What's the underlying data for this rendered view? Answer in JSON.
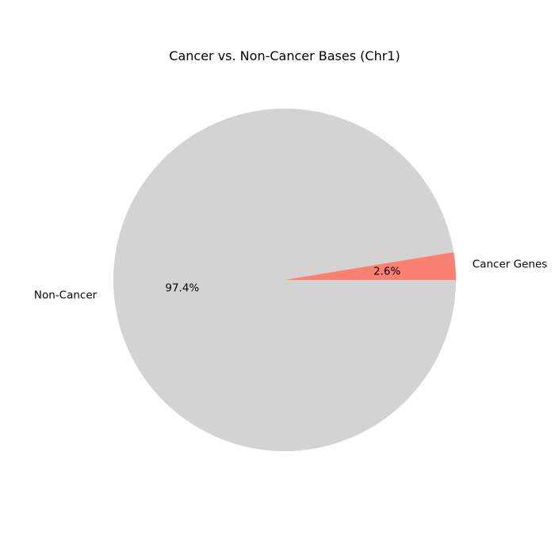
{
  "chart_data": {
    "type": "pie",
    "title": "Cancer vs. Non-Cancer Bases (Chr1)",
    "slices": [
      {
        "label": "Cancer Genes",
        "value": 2.6,
        "pct_label": "2.6%",
        "color": "#fa8072"
      },
      {
        "label": "Non-Cancer",
        "value": 97.4,
        "pct_label": "97.4%",
        "color": "#d3d3d3"
      }
    ],
    "start_angle_deg": 0,
    "direction": "counterclockwise",
    "legend": "none"
  }
}
